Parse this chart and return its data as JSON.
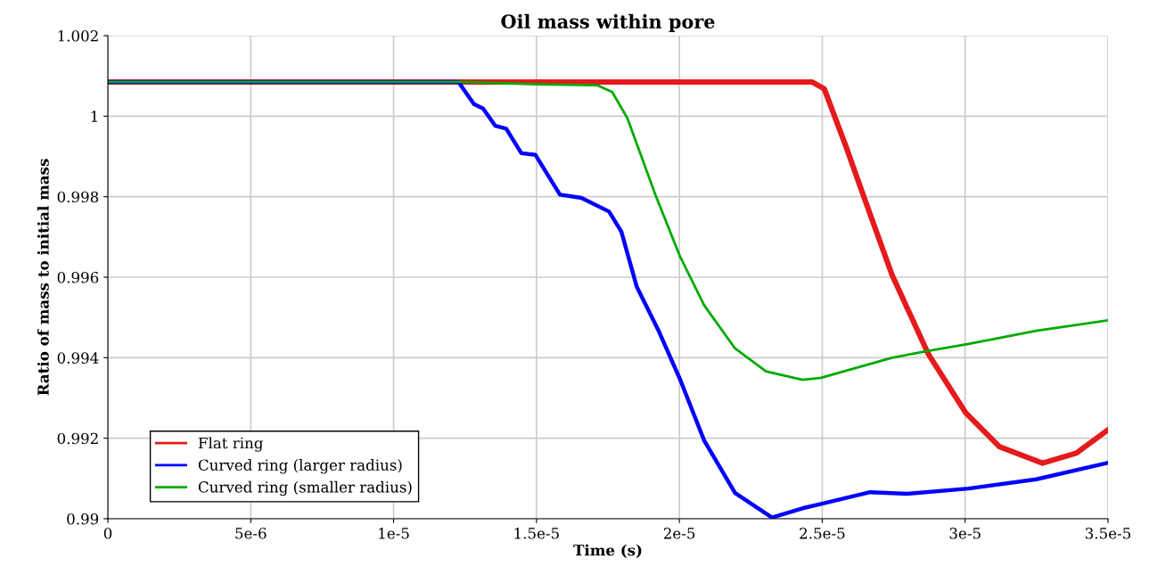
{
  "chart_data": {
    "type": "line",
    "title": "Oil mass within pore",
    "xlabel": "Time (s)",
    "ylabel": "Ratio of mass to initial mass",
    "xlim": [
      0,
      3.5e-05
    ],
    "ylim": [
      0.99,
      1.002
    ],
    "xticks": [
      0,
      {
        "value": 5e-06,
        "label": "5e-6"
      },
      {
        "value": 1e-05,
        "label": "1e-5"
      },
      {
        "value": 1.5e-05,
        "label": "1.5e-5"
      },
      {
        "value": 2e-05,
        "label": "2e-5"
      },
      {
        "value": 2.5e-05,
        "label": "2.5e-5"
      },
      {
        "value": 3e-05,
        "label": "3e-5"
      },
      {
        "value": 3.5e-05,
        "label": "3.5e-5"
      }
    ],
    "yticks": [
      0.99,
      0.992,
      0.994,
      0.996,
      0.998,
      1,
      1.002
    ],
    "grid": true,
    "legend": "bottom left",
    "marker": "none",
    "line_style": "solid",
    "series": [
      {
        "name": "Flat ring",
        "color": "#e41a1c",
        "x": [
          0,
          2.464e-05,
          2.507e-05,
          2.582e-05,
          2.647e-05,
          2.744e-05,
          2.872e-05,
          3.002e-05,
          3.12e-05,
          3.271e-05,
          3.389e-05,
          3.5e-05
        ],
        "values": [
          1.00085,
          1.00085,
          1.00068,
          0.99927,
          0.99797,
          0.99606,
          0.99408,
          0.99263,
          0.99179,
          0.99138,
          0.99163,
          0.99221
        ]
      },
      {
        "name": "Curved ring (larger radius)",
        "color": "#0000ff",
        "x": [
          0,
          1.227e-05,
          1.281e-05,
          1.313e-05,
          1.356e-05,
          1.394e-05,
          1.447e-05,
          1.496e-05,
          1.582e-05,
          1.657e-05,
          1.754e-05,
          1.797e-05,
          1.851e-05,
          1.926e-05,
          2.002e-05,
          2.087e-05,
          2.195e-05,
          2.324e-05,
          2.431e-05,
          2.496e-05,
          2.668e-05,
          2.797e-05,
          3.012e-05,
          3.249e-05,
          3.5e-05
        ],
        "values": [
          1.00085,
          1.00085,
          1.0003,
          1.00019,
          0.99976,
          0.99969,
          0.99908,
          0.99904,
          0.99805,
          0.99797,
          0.99763,
          0.99713,
          0.99576,
          0.99469,
          0.99347,
          0.99194,
          0.99064,
          0.99003,
          0.99026,
          0.99037,
          0.99066,
          0.99062,
          0.99075,
          0.99098,
          0.99139
        ]
      },
      {
        "name": "Curved ring (smaller radius)",
        "color": "#00aa00",
        "x": [
          0,
          1.23e-05,
          1.507e-05,
          1.712e-05,
          1.765e-05,
          1.818e-05,
          1.916e-05,
          2.002e-05,
          2.087e-05,
          2.195e-05,
          2.303e-05,
          2.431e-05,
          2.496e-05,
          2.744e-05,
          2.872e-05,
          3.012e-05,
          3.249e-05,
          3.5e-05
        ],
        "values": [
          1.00085,
          1.00085,
          1.00079,
          1.00077,
          1.0006,
          0.99995,
          0.99805,
          0.99652,
          0.9953,
          0.99423,
          0.99366,
          0.99345,
          0.9935,
          0.994,
          0.99417,
          0.99434,
          0.99467,
          0.99493
        ]
      }
    ]
  }
}
